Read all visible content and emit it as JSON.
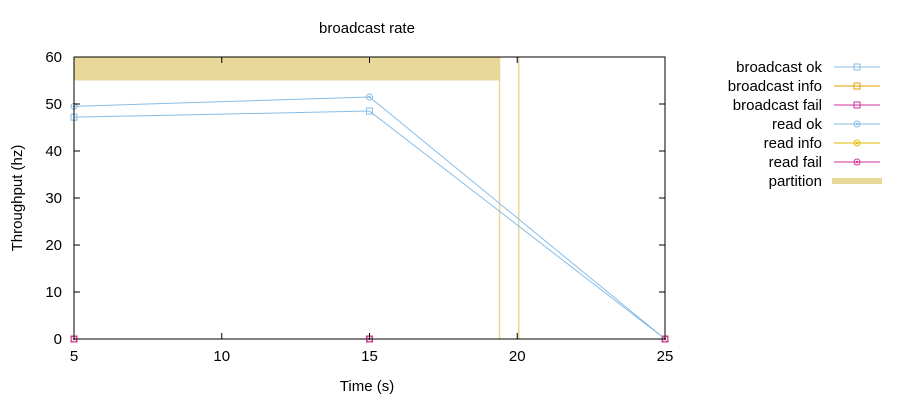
{
  "chart_data": {
    "type": "line",
    "title": "broadcast rate",
    "xlabel": "Time (s)",
    "ylabel": "Throughput (hz)",
    "xlim": [
      5,
      25
    ],
    "ylim": [
      0,
      60
    ],
    "xticks": [
      5,
      10,
      15,
      20,
      25
    ],
    "yticks": [
      0,
      10,
      20,
      30,
      40,
      50,
      60
    ],
    "grid": false,
    "legend_position": "right",
    "series": [
      {
        "name": "broadcast ok",
        "color": "#88bde6",
        "marker": "square",
        "x": [
          5,
          15,
          25
        ],
        "y": [
          47.2,
          48.5,
          0
        ]
      },
      {
        "name": "broadcast info",
        "color": "#e69f00",
        "marker": "square",
        "x": [
          5,
          15,
          25
        ],
        "y": [
          0,
          0,
          0
        ]
      },
      {
        "name": "broadcast fail",
        "color": "#cc3399",
        "marker": "square",
        "x": [
          5,
          15,
          25
        ],
        "y": [
          0,
          0,
          0
        ]
      },
      {
        "name": "read ok",
        "color": "#88bde6",
        "marker": "circle",
        "x": [
          5,
          15,
          25
        ],
        "y": [
          49.5,
          51.5,
          0
        ]
      },
      {
        "name": "read info",
        "color": "#e6b800",
        "marker": "circle",
        "x": [
          5,
          15,
          25
        ],
        "y": [
          0,
          0,
          0
        ]
      },
      {
        "name": "read fail",
        "color": "#cc3399",
        "marker": "circle",
        "x": [
          5,
          15,
          25
        ],
        "y": [
          0,
          0,
          0
        ]
      }
    ],
    "partition": {
      "name": "partition",
      "color": "#e8d89a",
      "band": {
        "x_start": 5,
        "x_end": 19.4,
        "y_start": 55,
        "y_end": 60
      },
      "vlines": [
        19.4,
        20.05
      ]
    }
  }
}
